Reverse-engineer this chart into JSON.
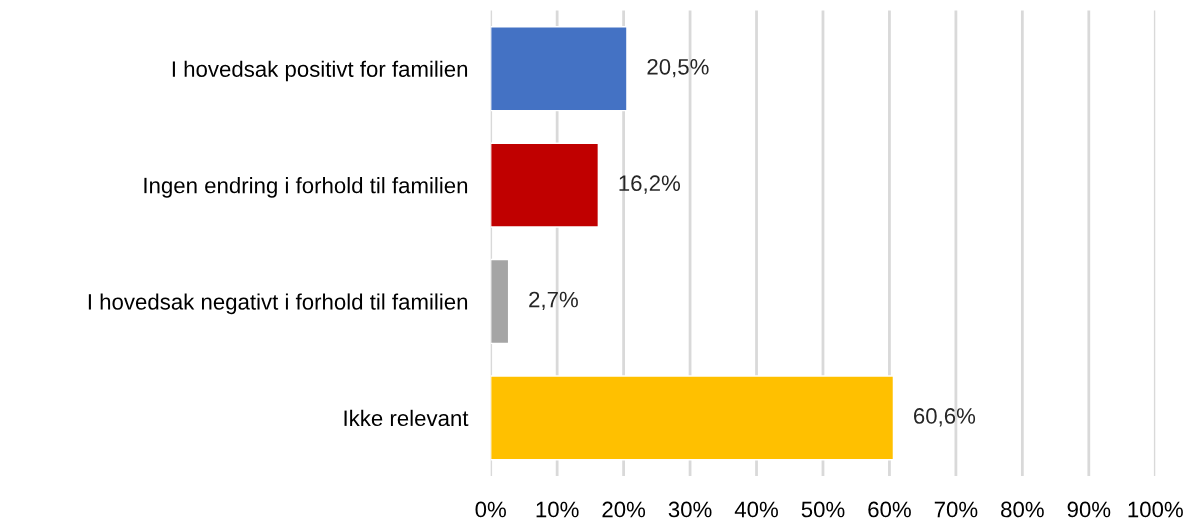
{
  "chart_data": {
    "type": "bar",
    "orientation": "horizontal",
    "categories": [
      "I hovedsak positivt for familien",
      "Ingen endring i forhold til familien",
      "I hovedsak negativt i forhold til familien",
      "Ikke relevant"
    ],
    "values": [
      20.5,
      16.2,
      2.7,
      60.6
    ],
    "colors": [
      "#4472c4",
      "#c00000",
      "#a5a5a5",
      "#ffc000"
    ],
    "value_labels": [
      "20,5%",
      "16,2%",
      "2,7%",
      "60,6%"
    ],
    "xlim": [
      0,
      100
    ],
    "xticks": [
      {
        "value": 0,
        "label": "0%"
      },
      {
        "value": 10,
        "label": "10%"
      },
      {
        "value": 20,
        "label": "20%"
      },
      {
        "value": 30,
        "label": "30%"
      },
      {
        "value": 40,
        "label": "40%"
      },
      {
        "value": 50,
        "label": "50%"
      },
      {
        "value": 60,
        "label": "60%"
      },
      {
        "value": 70,
        "label": "70%"
      },
      {
        "value": 80,
        "label": "80%"
      },
      {
        "value": 90,
        "label": "90%"
      },
      {
        "value": 100,
        "label": "100%"
      }
    ],
    "grid": "x",
    "legend": false
  }
}
